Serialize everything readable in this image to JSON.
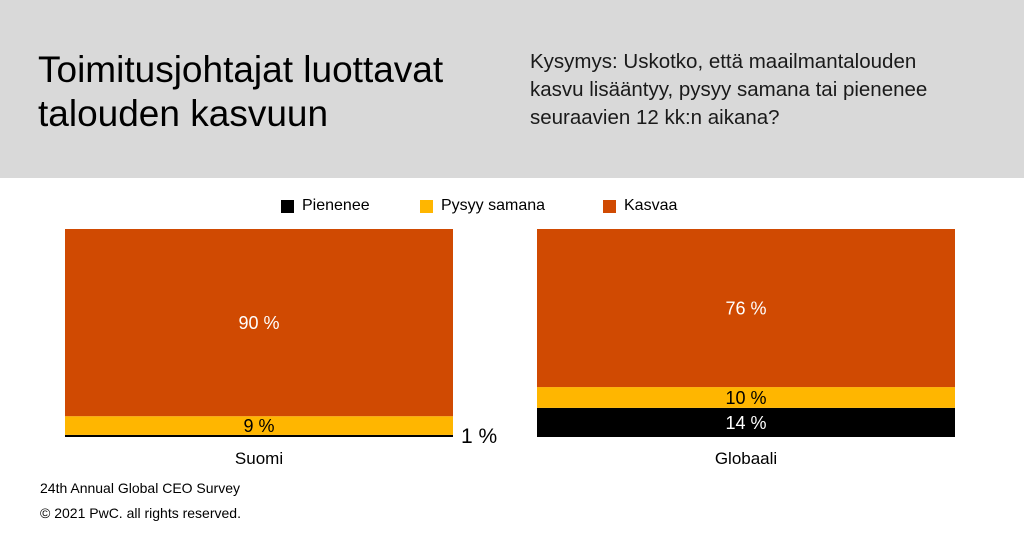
{
  "header": {
    "title_line1": "Toimitusjohtajat luottavat",
    "title_line2": "talouden kasvuun",
    "question_line1": "Kysymys: Uskotko, että maailmantalouden",
    "question_line2": "kasvu lisääntyy, pysyy samana tai pienenee",
    "question_line3": "seuraavien 12 kk:n aikana?"
  },
  "legend": [
    {
      "label": "Pienenee",
      "color": "#000000"
    },
    {
      "label": "Pysyy samana",
      "color": "#ffb600"
    },
    {
      "label": "Kasvaa",
      "color": "#d04a02"
    }
  ],
  "chart_data": {
    "type": "bar",
    "stacked": true,
    "unit": "%",
    "categories": [
      "Suomi",
      "Globaali"
    ],
    "series": [
      {
        "name": "Pienenee",
        "color": "#000000",
        "values": [
          1,
          14
        ],
        "labels": [
          "1 %",
          "14 %"
        ]
      },
      {
        "name": "Pysyy samana",
        "color": "#ffb600",
        "values": [
          9,
          10
        ],
        "labels": [
          "9 %",
          "10 %"
        ]
      },
      {
        "name": "Kasvaa",
        "color": "#d04a02",
        "values": [
          90,
          76
        ],
        "labels": [
          "90 %",
          "76 %"
        ]
      }
    ],
    "legend_position": "top-center"
  },
  "footer": {
    "survey": "24th Annual Global CEO Survey",
    "copyright": "© 2021 PwC. all rights reserved."
  }
}
